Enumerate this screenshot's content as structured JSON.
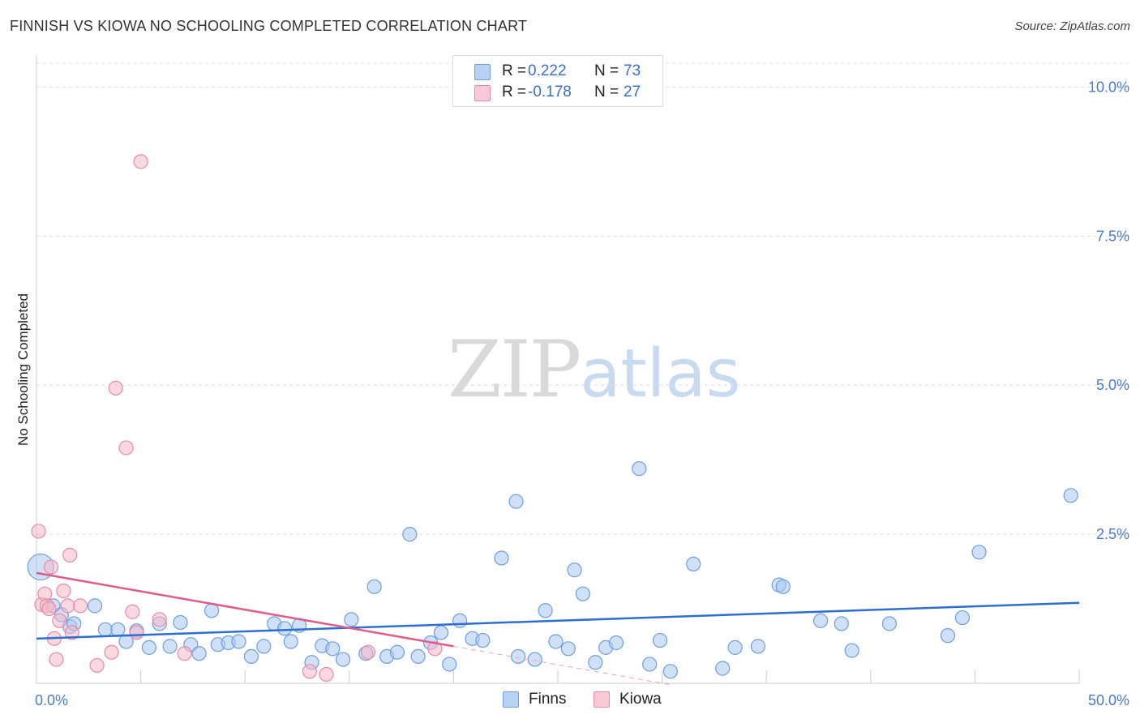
{
  "title": "FINNISH VS KIOWA NO SCHOOLING COMPLETED CORRELATION CHART",
  "source": "Source: ZipAtlas.com",
  "watermark": {
    "zip": "ZIP",
    "atlas": "atlas"
  },
  "colors": {
    "finns": "#a9c8f0",
    "finns_stroke": "#6d9fdc",
    "finns_line": "#2d6fd0",
    "kiowa": "#f6b8cb",
    "kiowa_stroke": "#e98aa7",
    "kiowa_line": "#e05a8a",
    "axis_text": "#4a7bc8",
    "grid": "#dddddd"
  },
  "legend": {
    "rows": [
      {
        "label": "R =",
        "r": "0.222",
        "n_label": "N =",
        "n": "73"
      },
      {
        "label": "R =",
        "r": "-0.178",
        "n_label": "N =",
        "n": "27"
      }
    ]
  },
  "bottom_legend": {
    "finns": "Finns",
    "kiowa": "Kiowa"
  },
  "chart_data": {
    "type": "scatter",
    "xlabel": "",
    "ylabel": "No Schooling Completed",
    "xlim": [
      0,
      50
    ],
    "ylim": [
      0,
      10.4
    ],
    "x_tick_labels": [
      {
        "value": 0,
        "label": "0.0%"
      },
      {
        "value": 50,
        "label": "50.0%"
      }
    ],
    "y_tick_labels": [
      {
        "value": 2.5,
        "label": "2.5%"
      },
      {
        "value": 5,
        "label": "5.0%"
      },
      {
        "value": 7.5,
        "label": "7.5%"
      },
      {
        "value": 10,
        "label": "10.0%"
      }
    ],
    "series": [
      {
        "name": "Finns",
        "points": [
          [
            0.2,
            1.95
          ],
          [
            0.8,
            1.3
          ],
          [
            1.2,
            1.15
          ],
          [
            1.6,
            0.95
          ],
          [
            1.8,
            1.0
          ],
          [
            2.8,
            1.3
          ],
          [
            3.3,
            0.9
          ],
          [
            3.9,
            0.9
          ],
          [
            4.3,
            0.7
          ],
          [
            4.8,
            0.88
          ],
          [
            5.4,
            0.6
          ],
          [
            5.9,
            1.0
          ],
          [
            6.4,
            0.62
          ],
          [
            6.9,
            1.02
          ],
          [
            7.4,
            0.65
          ],
          [
            7.8,
            0.5
          ],
          [
            8.4,
            1.22
          ],
          [
            8.7,
            0.65
          ],
          [
            9.2,
            0.68
          ],
          [
            9.7,
            0.7
          ],
          [
            10.3,
            0.45
          ],
          [
            10.9,
            0.62
          ],
          [
            11.4,
            1.0
          ],
          [
            11.9,
            0.92
          ],
          [
            12.2,
            0.7
          ],
          [
            12.6,
            0.97
          ],
          [
            13.2,
            0.35
          ],
          [
            13.7,
            0.63
          ],
          [
            14.2,
            0.58
          ],
          [
            14.7,
            0.4
          ],
          [
            15.1,
            1.07
          ],
          [
            15.8,
            0.5
          ],
          [
            16.2,
            1.62
          ],
          [
            16.8,
            0.45
          ],
          [
            17.3,
            0.52
          ],
          [
            17.9,
            2.5
          ],
          [
            18.3,
            0.45
          ],
          [
            18.9,
            0.68
          ],
          [
            19.4,
            0.85
          ],
          [
            19.8,
            0.32
          ],
          [
            20.3,
            1.05
          ],
          [
            20.9,
            0.75
          ],
          [
            21.4,
            0.72
          ],
          [
            22.3,
            2.1
          ],
          [
            23.0,
            3.05
          ],
          [
            23.1,
            0.45
          ],
          [
            23.9,
            0.4
          ],
          [
            24.4,
            1.22
          ],
          [
            24.9,
            0.7
          ],
          [
            25.5,
            0.58
          ],
          [
            25.8,
            1.9
          ],
          [
            26.2,
            1.5
          ],
          [
            26.8,
            0.35
          ],
          [
            27.3,
            0.6
          ],
          [
            27.8,
            0.68
          ],
          [
            28.9,
            3.6
          ],
          [
            29.4,
            0.32
          ],
          [
            29.9,
            0.72
          ],
          [
            30.4,
            0.2
          ],
          [
            31.5,
            2.0
          ],
          [
            32.9,
            0.25
          ],
          [
            33.5,
            0.6
          ],
          [
            34.6,
            0.62
          ],
          [
            35.6,
            1.65
          ],
          [
            35.8,
            1.62
          ],
          [
            37.6,
            1.05
          ],
          [
            38.6,
            1.0
          ],
          [
            39.1,
            0.55
          ],
          [
            40.9,
            1.0
          ],
          [
            43.7,
            0.8
          ],
          [
            44.4,
            1.1
          ],
          [
            45.2,
            2.2
          ],
          [
            49.6,
            3.15
          ]
        ]
      },
      {
        "name": "Kiowa",
        "points": [
          [
            0.1,
            2.55
          ],
          [
            0.25,
            1.32
          ],
          [
            0.4,
            1.5
          ],
          [
            0.5,
            1.3
          ],
          [
            0.6,
            1.25
          ],
          [
            0.7,
            1.95
          ],
          [
            0.85,
            0.75
          ],
          [
            0.95,
            0.4
          ],
          [
            1.1,
            1.05
          ],
          [
            1.3,
            1.55
          ],
          [
            1.5,
            1.3
          ],
          [
            1.6,
            2.15
          ],
          [
            1.7,
            0.85
          ],
          [
            2.1,
            1.3
          ],
          [
            2.9,
            0.3
          ],
          [
            3.6,
            0.52
          ],
          [
            3.8,
            4.95
          ],
          [
            4.3,
            3.95
          ],
          [
            4.6,
            1.2
          ],
          [
            4.8,
            0.85
          ],
          [
            5.0,
            8.75
          ],
          [
            5.9,
            1.07
          ],
          [
            7.1,
            0.5
          ],
          [
            13.1,
            0.2
          ],
          [
            13.9,
            0.15
          ],
          [
            15.9,
            0.52
          ],
          [
            19.1,
            0.58
          ]
        ]
      }
    ],
    "trend_lines": [
      {
        "name": "Finns",
        "x": [
          0,
          50
        ],
        "y": [
          0.75,
          1.35
        ],
        "style": "solid"
      },
      {
        "name": "Kiowa",
        "x": [
          0,
          20
        ],
        "y": [
          1.85,
          0.62
        ],
        "style": "solid"
      },
      {
        "name": "Kiowa",
        "x": [
          20,
          30.5
        ],
        "y": [
          0.62,
          -0.03
        ],
        "style": "dashed"
      }
    ],
    "grid": true
  }
}
